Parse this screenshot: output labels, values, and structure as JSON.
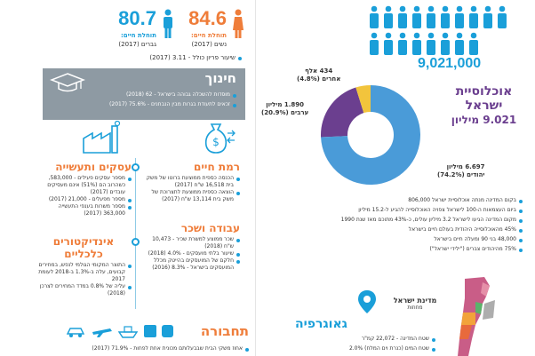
{
  "life_exp": {
    "men_value": "80.7",
    "men_label": "תוחלת חיים:",
    "men_sub": "גברים (2017)",
    "women_value": "84.6",
    "women_label": "תוחלת חיים:",
    "women_sub": "נשים (2017)",
    "fertility": "שיעור פריון כולל - 3.11 (2017)"
  },
  "education": {
    "title": "חינוך",
    "line1": "מוסדות להשכלה גבוהה בישראל - 62 (2018)",
    "line2": "זכאים לתעודת בגרות מבין הנבחנים - 75.6% (2017)"
  },
  "business": {
    "title": "עסקים ותעשייה",
    "items": [
      "מספר עסקים פעילים - 583,000, כשהרוב הם (51%) אינם מעסיקים עובדים (2017)",
      "מספר מפעלים - 21,000 (2017)",
      "מספר משרות בענפי התעשייה 363,000 (2017)"
    ]
  },
  "living": {
    "title": "רמת חיים",
    "items": [
      "הכנסה כספית ממוצעת ברוטו של משק בית 16,518 ש\"ח (2017)",
      "הוצאה כספית ממוצעת לתצרוכת של משק בית 13,114 ש\"ח (2017)"
    ]
  },
  "indicators": {
    "title": "אינדיקטורים כלכליים",
    "items": [
      "התוצר המקומי הגולמי לנפש, במחירים קבועים, עלה ב-1.3% ב-2018 לעומת 2017",
      "עליה של 0.8% במדד המחירים לצרכן (2018)"
    ]
  },
  "work": {
    "title": "עבודה ושכר",
    "items": [
      "שכר ממוצע למשרת שכיר - 10,473 ש\"ח (2018)",
      "שיעור בלתי מועסקים - 4.0% (2018)",
      "חלקם של המועסקים בהייטק מכלל המועסקים בישראל - 8.3% (2016)"
    ]
  },
  "transport": {
    "title": "תחבורה",
    "line": "אחוז משקי הבית שבבעלותם מכונית אחת לפחות - 71.9% (2017)"
  },
  "population": {
    "total": "9,021,000",
    "title_line1": "אוכלוסיית",
    "title_line2": "ישראל",
    "title_line3": "9.021 מיליון",
    "slices": [
      {
        "label_line1": "6.697 מיליון",
        "label_line2": "יהודים (74.2%)",
        "value": 74.2,
        "color": "#4a9bd8"
      },
      {
        "label_line1": "1.890 מיליון",
        "label_line2": "ערבים (20.9%)",
        "value": 20.9,
        "color": "#6b3f8f"
      },
      {
        "label_line1": "434 אלף",
        "label_line2": "אחרים (4.8%)",
        "value": 4.8,
        "color": "#f2c43c"
      }
    ],
    "facts": [
      "בקום המדינה מנתה אוכלוסיית ישראל 806,000",
      "ביום העצמאות ה-100 לישראל צפויה האוכלוסייה להגיע ל-15.2 מיליון",
      "מקום המדינה הגיעו לישראל 3.2 מיליון עולים, כ-43% מתוכם מאז שנת 1990",
      "45% מהאוכלוסייה היהודית בעולם חיים בישראל",
      "48,000 בני 90 ומעלה חיים בישראל",
      "75% מהיהודים צברים (\"ילידי ישראל\")"
    ]
  },
  "geography": {
    "title": "גאוגרפיה",
    "map_title": "מדינת ישראל",
    "map_sub": "מחוזות",
    "line1": "שטח המדינה - 22,072 קמ\"ר",
    "line2": "שטח המים (כנרת וים המלח) 2.0%"
  }
}
